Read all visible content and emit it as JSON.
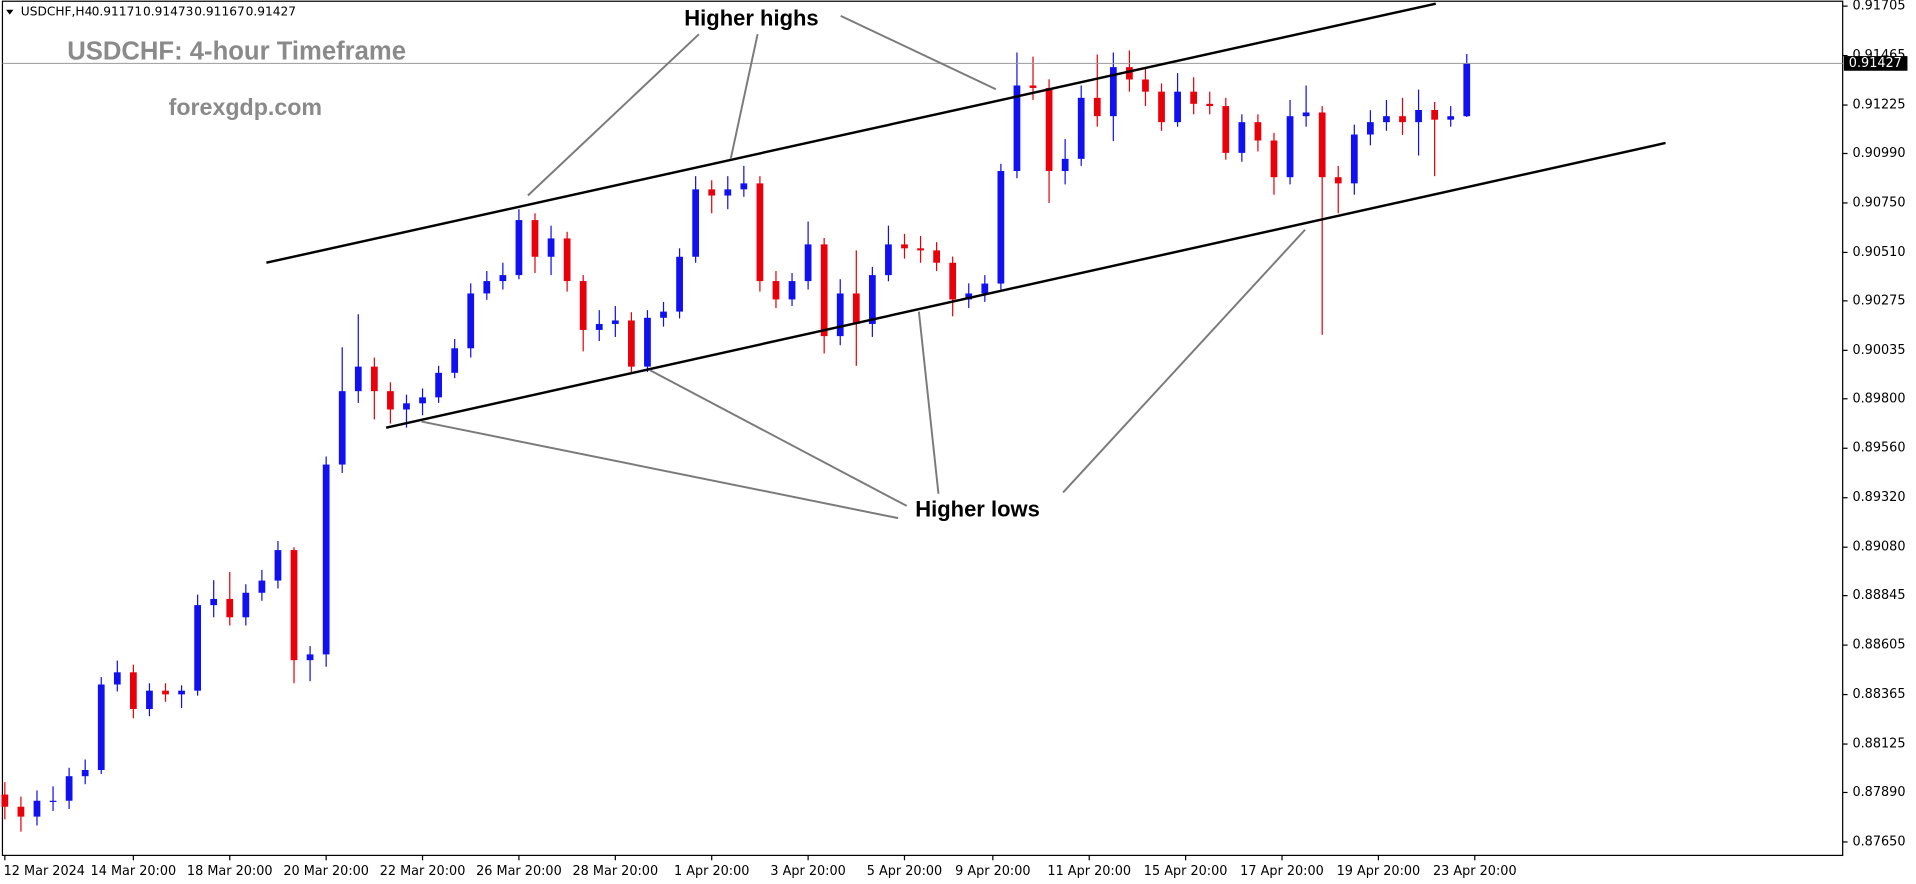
{
  "chart_data": {
    "type": "candlestick",
    "symbol": "USDCHF,H4",
    "title": "USDCHF: 4-hour Timeframe",
    "subtitle": "forexgdp.com",
    "annotations": [
      "Higher highs",
      "Higher lows"
    ],
    "up_color": "#1010f0",
    "down_color": "#e8000b",
    "xlim": [
      -0.15,
      114.4
    ],
    "xticks": [
      {
        "value": 0,
        "label": "12 Mar 2024"
      },
      {
        "value": 8,
        "label": "14 Mar 20:00"
      },
      {
        "value": 14,
        "label": "18 Mar 20:00"
      },
      {
        "value": 20,
        "label": "20 Mar 20:00"
      },
      {
        "value": 26,
        "label": "22 Mar 20:00"
      },
      {
        "value": 32,
        "label": "26 Mar 20:00"
      },
      {
        "value": 38,
        "label": "28 Mar 20:00"
      },
      {
        "value": 44,
        "label": "1 Apr 20:00"
      },
      {
        "value": 50,
        "label": "3 Apr 20:00"
      },
      {
        "value": 56,
        "label": "5 Apr 20:00"
      },
      {
        "value": 61.5,
        "label": "9 Apr 20:00"
      },
      {
        "value": 67.5,
        "label": "11 Apr 20:00"
      },
      {
        "value": 73.5,
        "label": "15 Apr 20:00"
      },
      {
        "value": 79.5,
        "label": "17 Apr 20:00"
      },
      {
        "value": 85.5,
        "label": "19 Apr 20:00"
      },
      {
        "value": 91.5,
        "label": "23 Apr 20:00"
      }
    ],
    "ylim": [
      0.8765,
      0.91705
    ],
    "yticks": [
      0.91705,
      0.91465,
      0.91225,
      {
        "value": 0.9099,
        "label": "0.90990"
      },
      {
        "value": 0.9075,
        "label": "0.90750"
      },
      {
        "value": 0.9051,
        "label": "0.90510"
      },
      0.90275,
      0.90035,
      {
        "value": 0.898,
        "label": "0.89800"
      },
      {
        "value": 0.8956,
        "label": "0.89560"
      },
      {
        "value": 0.8932,
        "label": "0.89320"
      },
      {
        "value": 0.8908,
        "label": "0.89080"
      },
      0.88845,
      0.88605,
      0.88365,
      0.88125,
      {
        "value": 0.8789,
        "label": "0.87890"
      },
      {
        "value": 0.8765,
        "label": "0.87650"
      }
    ],
    "candles": [
      [
        0.8788,
        0.8794,
        0.8776,
        0.87821
      ],
      [
        0.87821,
        0.8787,
        0.877,
        0.87773
      ],
      [
        0.87773,
        0.879,
        0.8773,
        0.8785
      ],
      [
        0.8785,
        0.8792,
        0.878,
        0.8785
      ],
      [
        0.8785,
        0.8801,
        0.8781,
        0.87969
      ],
      [
        0.87969,
        0.8805,
        0.8793,
        0.87999
      ],
      [
        0.87999,
        0.8845,
        0.8798,
        0.88414
      ],
      [
        0.88414,
        0.8853,
        0.8838,
        0.88473
      ],
      [
        0.88473,
        0.8851,
        0.8825,
        0.88295
      ],
      [
        0.88295,
        0.8842,
        0.8826,
        0.88384
      ],
      [
        0.88384,
        0.8842,
        0.8833,
        0.88366
      ],
      [
        0.88366,
        0.8841,
        0.883,
        0.88384
      ],
      [
        0.88384,
        0.8885,
        0.8836,
        0.88799
      ],
      [
        0.88799,
        0.8892,
        0.8874,
        0.88829
      ],
      [
        0.88829,
        0.8896,
        0.887,
        0.8874
      ],
      [
        0.8874,
        0.889,
        0.887,
        0.88859
      ],
      [
        0.88859,
        0.8897,
        0.8882,
        0.88918
      ],
      [
        0.88918,
        0.8911,
        0.8888,
        0.89066
      ],
      [
        0.89066,
        0.8908,
        0.8842,
        0.88532
      ],
      [
        0.88532,
        0.886,
        0.8843,
        0.8856
      ],
      [
        0.8856,
        0.8952,
        0.885,
        0.89481
      ],
      [
        0.89481,
        0.9005,
        0.8944,
        0.89837
      ],
      [
        0.89837,
        0.9021,
        0.8978,
        0.89956
      ],
      [
        0.89956,
        0.9,
        0.897,
        0.89837
      ],
      [
        0.89837,
        0.8988,
        0.8968,
        0.89748
      ],
      [
        0.89748,
        0.8982,
        0.8966,
        0.89778
      ],
      [
        0.89778,
        0.8985,
        0.8972,
        0.89807
      ],
      [
        0.89807,
        0.8996,
        0.8978,
        0.89926
      ],
      [
        0.89926,
        0.9009,
        0.899,
        0.90045
      ],
      [
        0.90045,
        0.9036,
        0.9,
        0.90311
      ],
      [
        0.90311,
        0.9042,
        0.9028,
        0.90371
      ],
      [
        0.90371,
        0.9046,
        0.9033,
        0.904
      ],
      [
        0.904,
        0.9072,
        0.9038,
        0.90667
      ],
      [
        0.90667,
        0.907,
        0.9041,
        0.90489
      ],
      [
        0.90489,
        0.9064,
        0.904,
        0.90578
      ],
      [
        0.90578,
        0.9061,
        0.9032,
        0.90371
      ],
      [
        0.90371,
        0.904,
        0.9003,
        0.90134
      ],
      [
        0.90134,
        0.9023,
        0.9008,
        0.90163
      ],
      [
        0.90163,
        0.9025,
        0.901,
        0.9018
      ],
      [
        0.9018,
        0.9022,
        0.8992,
        0.89956
      ],
      [
        0.89956,
        0.9023,
        0.8993,
        0.90193
      ],
      [
        0.90193,
        0.9027,
        0.9015,
        0.90223
      ],
      [
        0.90223,
        0.9053,
        0.9019,
        0.90489
      ],
      [
        0.90489,
        0.9088,
        0.9046,
        0.90816
      ],
      [
        0.90816,
        0.9086,
        0.907,
        0.90786
      ],
      [
        0.90786,
        0.9088,
        0.9072,
        0.90816
      ],
      [
        0.90816,
        0.9093,
        0.9078,
        0.90845
      ],
      [
        0.90845,
        0.9088,
        0.9032,
        0.90371
      ],
      [
        0.90371,
        0.9042,
        0.9024,
        0.90282
      ],
      [
        0.90282,
        0.9041,
        0.9025,
        0.90371
      ],
      [
        0.90371,
        0.9066,
        0.9033,
        0.90549
      ],
      [
        0.90549,
        0.9058,
        0.9002,
        0.90104
      ],
      [
        0.90104,
        0.9038,
        0.9006,
        0.90311
      ],
      [
        0.90311,
        0.9052,
        0.8996,
        0.90163
      ],
      [
        0.90163,
        0.9044,
        0.901,
        0.904
      ],
      [
        0.904,
        0.9064,
        0.9037,
        0.90549
      ],
      [
        0.90549,
        0.906,
        0.9048,
        0.9053
      ],
      [
        0.9053,
        0.9059,
        0.9046,
        0.9052
      ],
      [
        0.9052,
        0.9056,
        0.9042,
        0.9046
      ],
      [
        0.9046,
        0.9049,
        0.902,
        0.90282
      ],
      [
        0.90282,
        0.9036,
        0.9024,
        0.90311
      ],
      [
        0.90311,
        0.904,
        0.9027,
        0.90359
      ],
      [
        0.90359,
        0.9094,
        0.9033,
        0.90905
      ],
      [
        0.90905,
        0.9148,
        0.9087,
        0.9132
      ],
      [
        0.9132,
        0.9146,
        0.9125,
        0.91308
      ],
      [
        0.91308,
        0.9135,
        0.9075,
        0.90905
      ],
      [
        0.90905,
        0.9106,
        0.9084,
        0.90964
      ],
      [
        0.90964,
        0.9132,
        0.9093,
        0.9126
      ],
      [
        0.9126,
        0.9147,
        0.9112,
        0.91171
      ],
      [
        0.91171,
        0.9148,
        0.9105,
        0.91409
      ],
      [
        0.91409,
        0.9149,
        0.9129,
        0.91349
      ],
      [
        0.91349,
        0.914,
        0.9122,
        0.9129
      ],
      [
        0.9129,
        0.9133,
        0.911,
        0.91142
      ],
      [
        0.91142,
        0.9138,
        0.9112,
        0.9129
      ],
      [
        0.9129,
        0.9136,
        0.9118,
        0.91231
      ],
      [
        0.91231,
        0.9129,
        0.9118,
        0.9122
      ],
      [
        0.9122,
        0.9126,
        0.9096,
        0.90993
      ],
      [
        0.90993,
        0.9118,
        0.9095,
        0.91142
      ],
      [
        0.91142,
        0.9118,
        0.91,
        0.91053
      ],
      [
        0.91053,
        0.9109,
        0.9079,
        0.90875
      ],
      [
        0.90875,
        0.9125,
        0.9084,
        0.91171
      ],
      [
        0.91171,
        0.9132,
        0.9112,
        0.91189
      ],
      [
        0.91189,
        0.9122,
        0.9011,
        0.90875
      ],
      [
        0.90875,
        0.9093,
        0.907,
        0.90845
      ],
      [
        0.90845,
        0.9113,
        0.9079,
        0.91082
      ],
      [
        0.91082,
        0.912,
        0.9103,
        0.91142
      ],
      [
        0.91142,
        0.9125,
        0.911,
        0.91171
      ],
      [
        0.91171,
        0.9126,
        0.9108,
        0.91142
      ],
      [
        0.91142,
        0.913,
        0.9098,
        0.91201
      ],
      [
        0.91201,
        0.9124,
        0.9088,
        0.91154
      ],
      [
        0.91154,
        0.9122,
        0.9112,
        0.91171
      ],
      [
        0.91171,
        0.91473,
        0.91167,
        0.91427
      ]
    ]
  }
}
